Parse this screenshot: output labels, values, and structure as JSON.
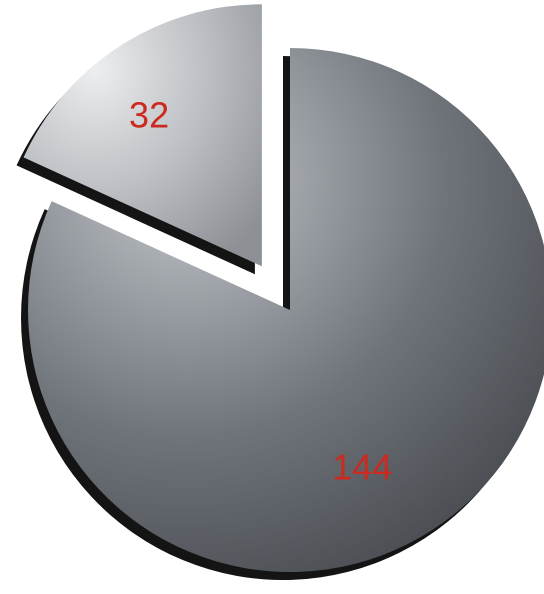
{
  "chart_data": {
    "type": "pie",
    "exploded": true,
    "style": "3d-beveled",
    "start_angle_deg": 0,
    "slices": [
      {
        "value": 144,
        "label": "144",
        "color": "#6f747a",
        "highlight": "#c3c7cc",
        "shadow": "#43464b",
        "exploded": false
      },
      {
        "value": 32,
        "label": "32",
        "color": "#b9bcc0",
        "highlight": "#eceef0",
        "shadow": "#8d9095",
        "exploded": true
      }
    ],
    "label_color": "#cc2a1f"
  }
}
